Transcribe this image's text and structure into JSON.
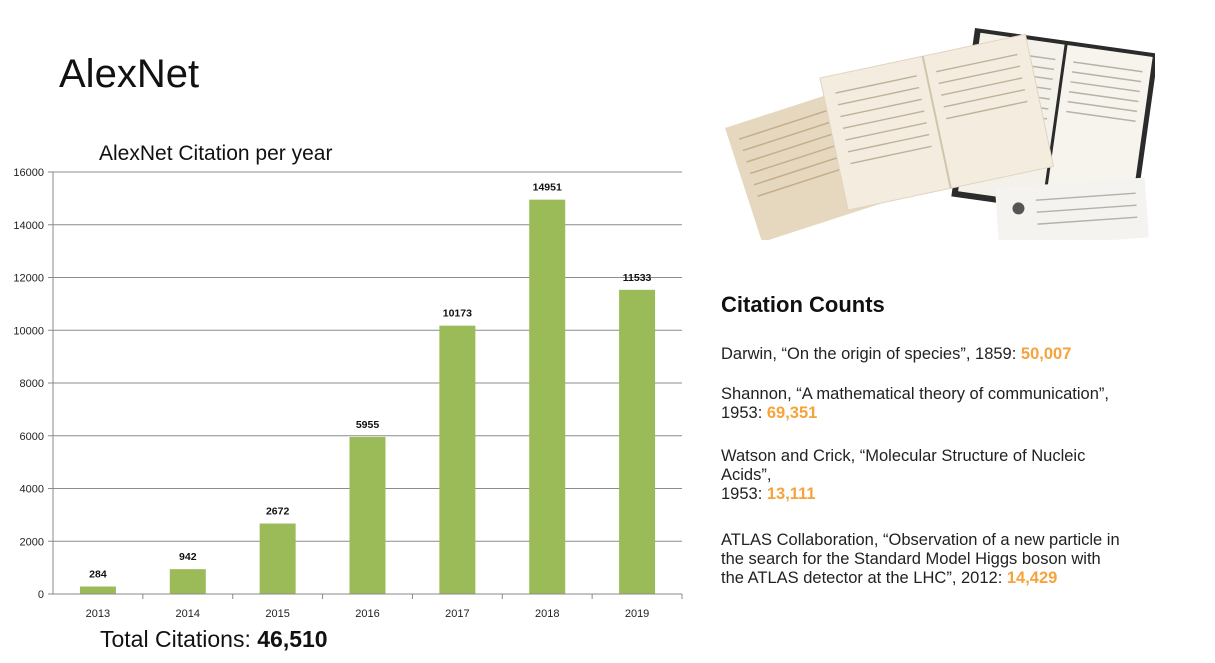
{
  "slide_title": "AlexNet",
  "total": {
    "label": "Total Citations: ",
    "value": "46,510"
  },
  "citation_counts": {
    "heading": "Citation Counts",
    "entries": [
      {
        "text": "Darwin, “On the origin of species”, 1859: ",
        "count": "50,007"
      },
      {
        "text": "Shannon, “A mathematical theory of communication”,",
        "text2": "1953: ",
        "count": "69,351"
      },
      {
        "text": "Watson and Crick, “Molecular Structure of Nucleic",
        "text2": "Acids”,",
        "text3": "1953: ",
        "count": "13,111"
      },
      {
        "text": "ATLAS Collaboration, “Observation of a new particle in",
        "text2": "the search for the Standard Model Higgs boson with",
        "text3": "the ATLAS detector at the LHC”, 2012: ",
        "count": "14,429"
      }
    ]
  },
  "colors": {
    "bar": "#9bbb59",
    "accent": "#f6a33c"
  },
  "chart_data": {
    "type": "bar",
    "title": "AlexNet Citation per year",
    "categories": [
      "2013",
      "2014",
      "2015",
      "2016",
      "2017",
      "2018",
      "2019"
    ],
    "values": [
      284,
      942,
      2672,
      5955,
      10173,
      14951,
      11533
    ],
    "value_labels": [
      "284",
      "942",
      "2672",
      "5955",
      "10173",
      "14951",
      "11533"
    ],
    "ylim": [
      0,
      16000
    ],
    "yticks": [
      "0",
      "2000",
      "4000",
      "6000",
      "8000",
      "10000",
      "12000",
      "14000",
      "16000"
    ],
    "xlabel": "",
    "ylabel": "",
    "grid": true,
    "legend": "none"
  }
}
